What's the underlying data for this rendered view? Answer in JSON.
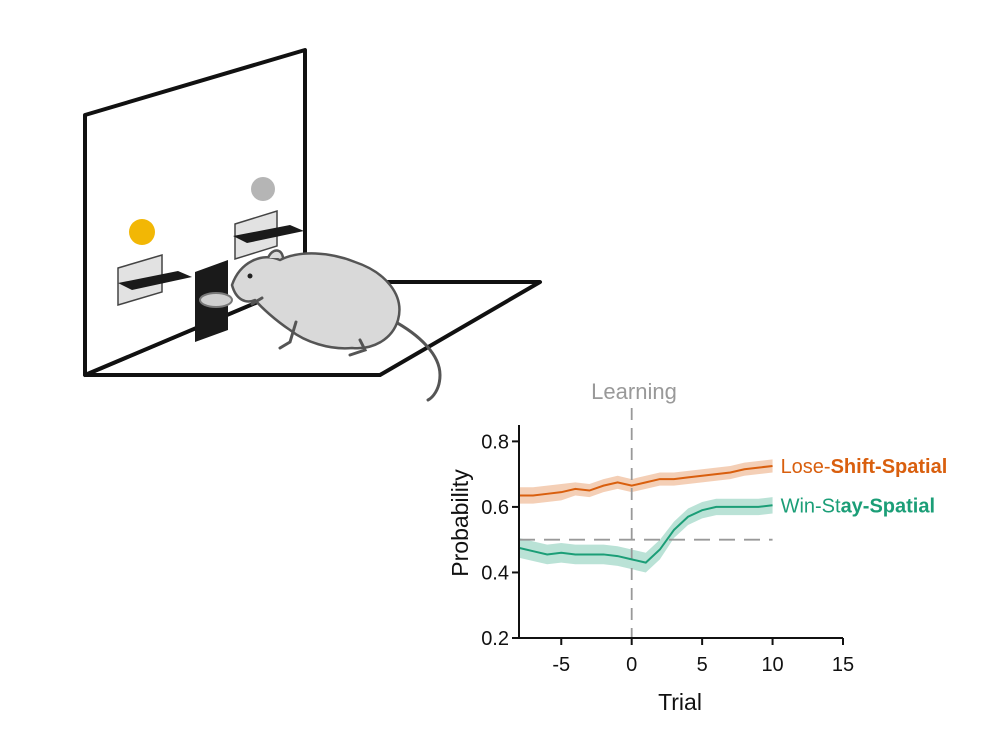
{
  "colors": {
    "lose_shift": "#d95f0e",
    "win_stay": "#1b9e77",
    "reference": "#999999",
    "stimulus_left": "#f2b705",
    "stimulus_right": "#b5b5b5"
  },
  "illustration": {
    "subject": "rat-icon",
    "left_stimulus": "yellow-light-icon",
    "right_stimulus": "gray-light-icon"
  },
  "chart_data": {
    "type": "line",
    "xlabel": "Trial",
    "ylabel": "Probability",
    "xlim": [
      -8,
      15
    ],
    "ylim": [
      0.2,
      0.85
    ],
    "xticks": [
      -5,
      0,
      5,
      10,
      15
    ],
    "yticks": [
      0.2,
      0.4,
      0.6,
      0.8
    ],
    "xtick_labels": [
      "-5",
      "0",
      "5",
      "10",
      "15"
    ],
    "ytick_labels": [
      "0.2",
      "0.4",
      "0.6",
      "0.8"
    ],
    "vline": {
      "x": 0,
      "label": "Learning"
    },
    "hline": {
      "y": 0.5
    },
    "grid": false,
    "x": [
      -8,
      -7,
      -6,
      -5,
      -4,
      -3,
      -2,
      -1,
      0,
      1,
      2,
      3,
      4,
      5,
      6,
      7,
      8,
      9,
      10
    ],
    "series": [
      {
        "name": "Lose-Shift-Spatial",
        "label_parts": [
          "Lose-",
          "Shift-Spatial"
        ],
        "values": [
          0.635,
          0.635,
          0.64,
          0.645,
          0.655,
          0.65,
          0.665,
          0.675,
          0.665,
          0.675,
          0.685,
          0.685,
          0.69,
          0.695,
          0.7,
          0.705,
          0.715,
          0.72,
          0.725
        ],
        "error": [
          0.025,
          0.025,
          0.025,
          0.025,
          0.02,
          0.02,
          0.02,
          0.02,
          0.02,
          0.02,
          0.02,
          0.02,
          0.02,
          0.02,
          0.02,
          0.02,
          0.02,
          0.02,
          0.02
        ]
      },
      {
        "name": "Win-Stay-Spatial",
        "label_parts": [
          "Win-St",
          "ay-Spatial"
        ],
        "values": [
          0.475,
          0.465,
          0.455,
          0.46,
          0.455,
          0.455,
          0.455,
          0.45,
          0.44,
          0.43,
          0.47,
          0.53,
          0.57,
          0.59,
          0.6,
          0.6,
          0.6,
          0.6,
          0.605
        ],
        "error": [
          0.03,
          0.03,
          0.03,
          0.03,
          0.03,
          0.03,
          0.03,
          0.03,
          0.03,
          0.03,
          0.03,
          0.025,
          0.025,
          0.025,
          0.025,
          0.025,
          0.025,
          0.025,
          0.025
        ]
      }
    ]
  }
}
